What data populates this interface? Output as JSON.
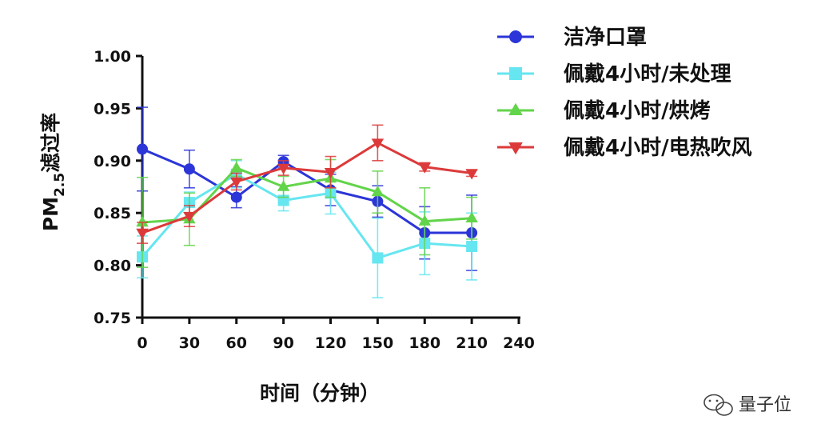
{
  "chart_data": {
    "type": "line",
    "xlabel": "时间（分钟）",
    "ylabel": {
      "prefix": "PM",
      "sub": "2.5",
      "suffix": "滤过率"
    },
    "x": [
      0,
      30,
      60,
      90,
      120,
      150,
      180,
      210
    ],
    "xlim": [
      0,
      240
    ],
    "ylim": [
      0.75,
      1.0
    ],
    "xticks": [
      "0",
      "30",
      "60",
      "90",
      "120",
      "150",
      "180",
      "210",
      "240"
    ],
    "yticks": [
      "0.75",
      "0.80",
      "0.85",
      "0.90",
      "0.95",
      "1.00"
    ],
    "grid": false,
    "legend_position": "top-right",
    "series": [
      {
        "name": "洁净口罩",
        "color": "#2b35d8",
        "marker": "circle",
        "values": [
          0.911,
          0.892,
          0.865,
          0.899,
          0.872,
          0.861,
          0.831,
          0.831
        ],
        "errors": [
          0.04,
          0.018,
          0.01,
          0.006,
          0.015,
          0.015,
          0.025,
          0.036
        ]
      },
      {
        "name": "佩戴4小时/未处理",
        "color": "#66e6f0",
        "marker": "square",
        "values": [
          0.808,
          0.86,
          0.887,
          0.862,
          0.869,
          0.807,
          0.821,
          0.818
        ],
        "errors": [
          0.02,
          0.01,
          0.013,
          0.01,
          0.02,
          0.038,
          0.03,
          0.032
        ]
      },
      {
        "name": "佩戴4小时/烘烤",
        "color": "#62d44a",
        "marker": "triangle-up",
        "values": [
          0.841,
          0.844,
          0.893,
          0.875,
          0.883,
          0.87,
          0.842,
          0.845
        ],
        "errors": [
          0.043,
          0.025,
          0.008,
          0.01,
          0.018,
          0.02,
          0.032,
          0.02
        ]
      },
      {
        "name": "佩戴4小时/电热吹风",
        "color": "#dc3a3a",
        "marker": "triangle-down",
        "values": [
          0.831,
          0.847,
          0.88,
          0.893,
          0.889,
          0.917,
          0.894,
          0.888
        ],
        "errors": [
          0.01,
          0.01,
          0.008,
          0.007,
          0.015,
          0.017,
          0.004,
          0.003
        ]
      }
    ]
  },
  "watermark": {
    "text": "量子位",
    "icon": "wechat-icon"
  }
}
